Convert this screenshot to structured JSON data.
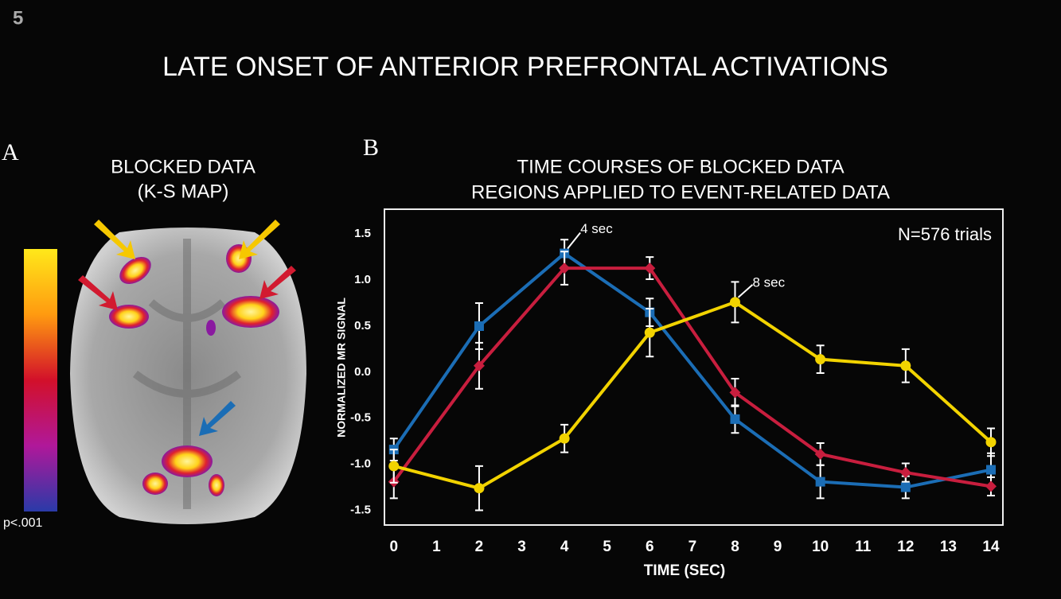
{
  "figure_number": "5",
  "title": "LATE ONSET OF ANTERIOR PREFRONTAL ACTIVATIONS",
  "panel_a": {
    "label": "A",
    "title_lines": [
      "BLOCKED DATA",
      "(K-S MAP)"
    ],
    "colorbar_label": "p<.001"
  },
  "panel_b_label": "B",
  "chart_data": {
    "type": "line",
    "title_lines": [
      "TIME COURSES OF BLOCKED DATA",
      "REGIONS APPLIED TO EVENT-RELATED DATA"
    ],
    "xlabel": "TIME (SEC)",
    "ylabel": "NORMALIZED MR SIGNAL",
    "annotations": [
      "N=576 trials",
      "4 sec",
      "8 sec"
    ],
    "x": [
      0,
      2,
      4,
      6,
      8,
      10,
      12,
      14
    ],
    "xlim": [
      -0.22,
      14.28
    ],
    "xticks": [
      0,
      1,
      2,
      3,
      4,
      5,
      6,
      7,
      8,
      9,
      10,
      11,
      12,
      13,
      14
    ],
    "ylim": [
      -1.66,
      1.77
    ],
    "yticks": [
      -1.5,
      {
        "value": -1.0,
        "label": "-1.0"
      },
      -0.5,
      {
        "value": 0.0,
        "label": "0.0"
      },
      0.5,
      {
        "value": 1.0,
        "label": "1.0"
      },
      1.5
    ],
    "series": [
      {
        "color": "#1b6db5",
        "marker": "square",
        "values": [
          -0.84,
          0.5,
          1.29,
          0.65,
          -0.51,
          -1.19,
          -1.25,
          -1.06
        ],
        "errors": [
          0.12,
          0.25,
          0.15,
          0.15,
          0.15,
          0.18,
          0.12,
          0.18
        ]
      },
      {
        "color": "#c81e3e",
        "marker": "diamond",
        "values": [
          -1.19,
          0.07,
          1.13,
          1.13,
          -0.22,
          -0.89,
          -1.09,
          -1.24
        ],
        "errors": [
          0.18,
          0.25,
          0.18,
          0.12,
          0.15,
          0.12,
          0.1,
          0.1
        ]
      },
      {
        "color": "#f2d300",
        "marker": "circle",
        "values": [
          -1.02,
          -1.26,
          -0.72,
          0.43,
          0.76,
          0.14,
          0.07,
          -0.76
        ],
        "errors": [
          0.18,
          0.24,
          0.15,
          0.26,
          0.22,
          0.15,
          0.18,
          0.15
        ]
      }
    ]
  }
}
